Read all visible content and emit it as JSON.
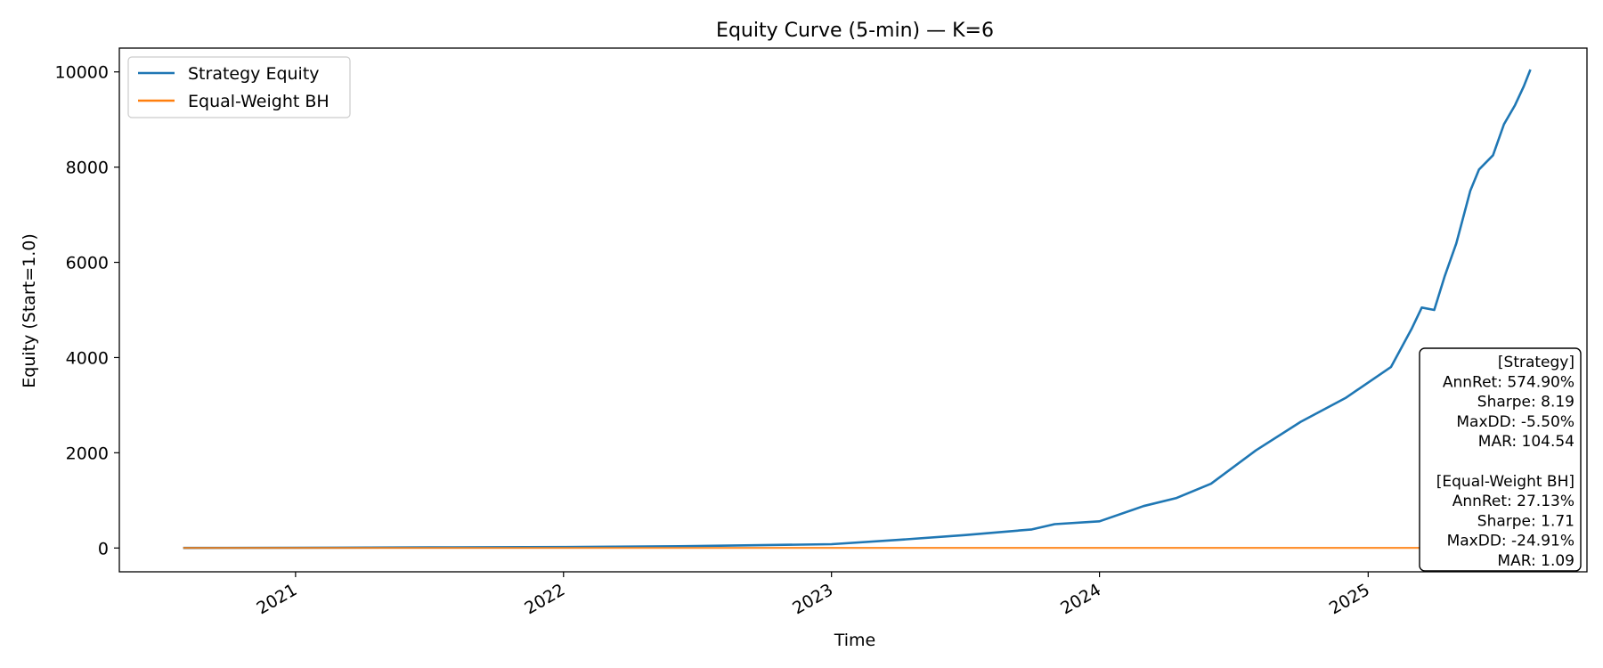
{
  "chart_data": {
    "type": "line",
    "title": "Equity Curve (5-min) — K=6",
    "xlabel": "Time",
    "ylabel": "Equity (Start=1.0)",
    "x_type": "date",
    "xlim": [
      "2020-05-06",
      "2025-10-26"
    ],
    "ylim": [
      -500,
      10500
    ],
    "yticks": [
      0,
      2000,
      4000,
      6000,
      8000,
      10000
    ],
    "xticks": [
      {
        "date": "2021-01-01",
        "label": "2021"
      },
      {
        "date": "2022-01-01",
        "label": "2022"
      },
      {
        "date": "2023-01-01",
        "label": "2023"
      },
      {
        "date": "2024-01-01",
        "label": "2024"
      },
      {
        "date": "2025-01-01",
        "label": "2025"
      }
    ],
    "grid": false,
    "legend_position": "upper-left",
    "series": [
      {
        "name": "Strategy Equity",
        "color": "#1f77b4",
        "points": [
          [
            "2020-08-01",
            1
          ],
          [
            "2021-01-01",
            5
          ],
          [
            "2021-07-01",
            12
          ],
          [
            "2022-01-01",
            20
          ],
          [
            "2022-07-01",
            40
          ],
          [
            "2023-01-01",
            80
          ],
          [
            "2023-04-01",
            170
          ],
          [
            "2023-07-01",
            270
          ],
          [
            "2023-10-01",
            390
          ],
          [
            "2023-11-01",
            500
          ],
          [
            "2024-01-01",
            560
          ],
          [
            "2024-03-01",
            880
          ],
          [
            "2024-04-15",
            1050
          ],
          [
            "2024-06-01",
            1350
          ],
          [
            "2024-08-01",
            2050
          ],
          [
            "2024-10-01",
            2650
          ],
          [
            "2024-12-01",
            3150
          ],
          [
            "2025-02-01",
            3800
          ],
          [
            "2025-03-01",
            4600
          ],
          [
            "2025-03-15",
            5050
          ],
          [
            "2025-04-01",
            5000
          ],
          [
            "2025-04-15",
            5700
          ],
          [
            "2025-05-01",
            6400
          ],
          [
            "2025-05-20",
            7500
          ],
          [
            "2025-06-01",
            7950
          ],
          [
            "2025-06-20",
            8250
          ],
          [
            "2025-07-05",
            8900
          ],
          [
            "2025-07-20",
            9300
          ],
          [
            "2025-08-01",
            9700
          ],
          [
            "2025-08-10",
            10050
          ]
        ]
      },
      {
        "name": "Equal-Weight BH",
        "color": "#ff7f0e",
        "points": [
          [
            "2020-08-01",
            1
          ],
          [
            "2022-01-01",
            1.5
          ],
          [
            "2024-01-01",
            2.6
          ],
          [
            "2025-08-10",
            3.3
          ]
        ]
      }
    ],
    "annotation_box": {
      "position": "lower-right",
      "lines": [
        "[Strategy]",
        "AnnRet: 574.90%",
        "Sharpe: 8.19",
        "MaxDD: -5.50%",
        "MAR: 104.54",
        "",
        "[Equal-Weight BH]",
        "AnnRet: 27.13%",
        "Sharpe: 1.71",
        "MaxDD: -24.91%",
        "MAR: 1.09"
      ]
    }
  }
}
